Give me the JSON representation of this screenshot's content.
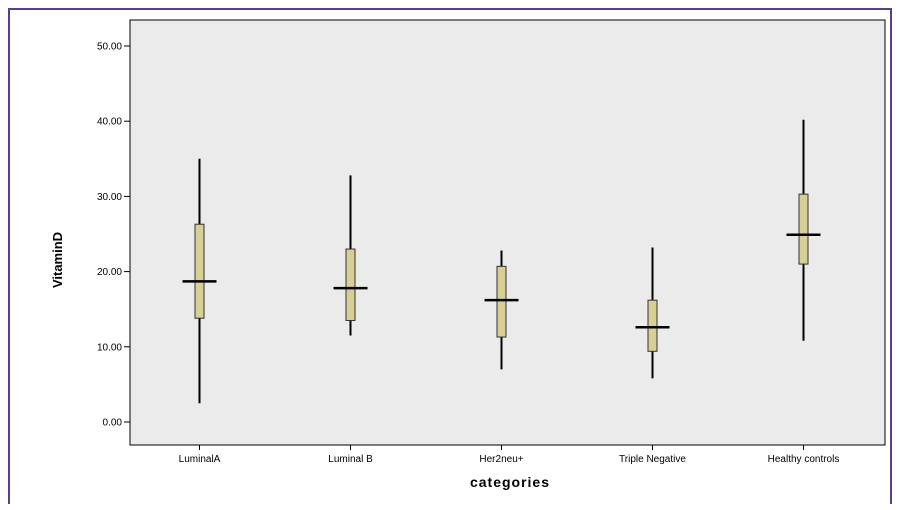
{
  "colors": {
    "frame_border": "#5b3f86",
    "plot_background": "#ebebeb",
    "box_fill": "#d8cf94",
    "box_stroke": "#333333",
    "whisker": "#000000"
  },
  "chart_data": {
    "type": "boxplot",
    "xlabel": "categories",
    "ylabel": "VitaminD",
    "ylim": [
      0,
      50
    ],
    "yticks": [
      "0.00",
      "10.00",
      "20.00",
      "30.00",
      "40.00",
      "50.00"
    ],
    "ytick_values": [
      0,
      10,
      20,
      30,
      40,
      50
    ],
    "grid": false,
    "categories": [
      "LuminalA",
      "Luminal B",
      "Her2neu+",
      "Triple Negative",
      "Healthy controls"
    ],
    "boxes": [
      {
        "min": 2.5,
        "q1": 13.8,
        "median": 18.7,
        "q3": 26.3,
        "max": 35.0
      },
      {
        "min": 11.5,
        "q1": 13.5,
        "median": 17.8,
        "q3": 23.0,
        "max": 32.8
      },
      {
        "min": 7.0,
        "q1": 11.3,
        "median": 16.2,
        "q3": 20.7,
        "max": 22.8
      },
      {
        "min": 5.8,
        "q1": 9.4,
        "median": 12.6,
        "q3": 16.2,
        "max": 23.2
      },
      {
        "min": 10.8,
        "q1": 21.0,
        "median": 24.9,
        "q3": 30.3,
        "max": 40.2
      }
    ]
  }
}
